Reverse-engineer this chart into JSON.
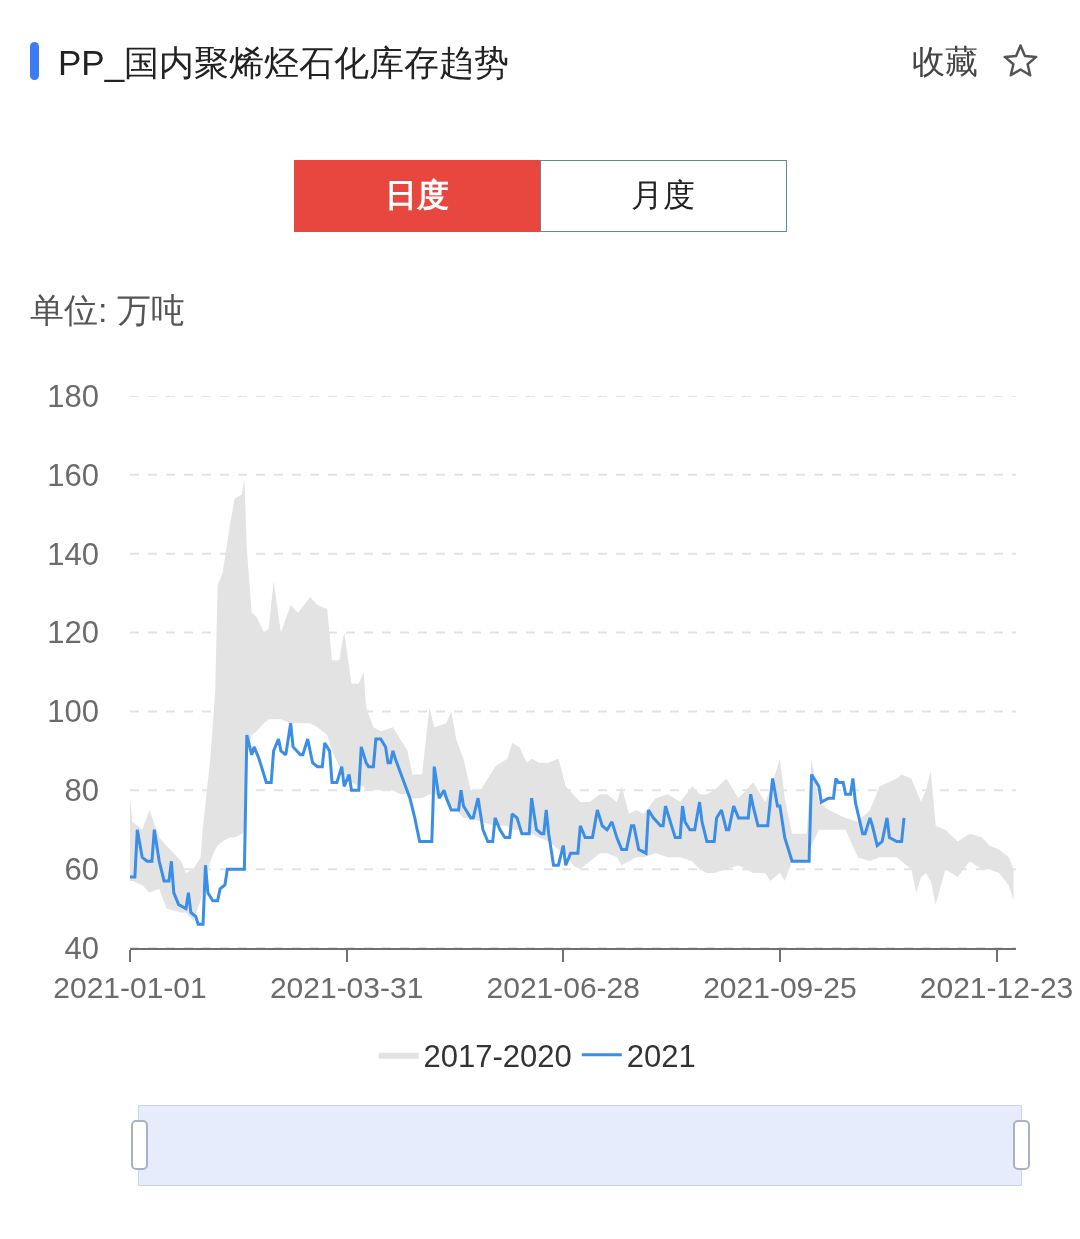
{
  "chart_data": {
    "type": "line",
    "title": "PP_国内聚烯烃石化库存趋势",
    "ylabel": "单位: 万吨",
    "annotations": [
      "收藏",
      "日度",
      "月度"
    ],
    "series": [
      {
        "name": "2017-2020",
        "type": "area",
        "color": "#e3e3e3",
        "x": [
          "2021-01-01",
          "2021-01-02",
          "2021-01-06",
          "2021-01-09",
          "2021-01-13",
          "2021-01-16",
          "2021-01-22",
          "2021-01-24",
          "2021-01-27",
          "2021-01-30",
          "2021-01-31",
          "2021-02-03",
          "2021-02-05",
          "2021-02-06",
          "2021-02-08",
          "2021-02-11",
          "2021-02-13",
          "2021-02-16",
          "2021-02-17",
          "2021-02-18",
          "2021-02-20",
          "2021-02-22",
          "2021-02-25",
          "2021-02-27",
          "2021-03-01",
          "2021-03-04",
          "2021-03-08",
          "2021-03-11",
          "2021-03-16",
          "2021-03-19",
          "2021-03-23",
          "2021-03-25",
          "2021-03-28",
          "2021-03-30",
          "2021-04-02",
          "2021-04-05",
          "2021-04-07",
          "2021-04-08",
          "2021-04-11",
          "2021-04-14",
          "2021-04-19",
          "2021-04-22",
          "2021-04-25",
          "2021-04-27",
          "2021-05-01",
          "2021-05-04",
          "2021-05-06",
          "2021-05-11",
          "2021-05-13",
          "2021-05-15",
          "2021-05-18",
          "2021-05-21",
          "2021-05-25",
          "2021-05-31",
          "2021-06-05",
          "2021-06-07",
          "2021-06-10",
          "2021-06-13",
          "2021-06-15",
          "2021-06-18",
          "2021-06-22",
          "2021-06-26",
          "2021-06-29",
          "2021-07-02",
          "2021-07-05",
          "2021-07-09",
          "2021-07-13",
          "2021-07-16",
          "2021-07-20",
          "2021-07-22",
          "2021-07-25",
          "2021-07-28",
          "2021-07-31",
          "2021-08-05",
          "2021-08-10",
          "2021-08-15",
          "2021-08-20",
          "2021-08-23",
          "2021-08-26",
          "2021-08-29",
          "2021-09-03",
          "2021-09-08",
          "2021-09-14",
          "2021-09-19",
          "2021-09-21",
          "2021-09-25",
          "2021-09-27",
          "2021-09-30",
          "2021-10-06",
          "2021-10-08",
          "2021-10-11",
          "2021-10-15",
          "2021-10-22",
          "2021-10-27",
          "2021-11-01",
          "2021-11-05",
          "2021-11-12",
          "2021-11-14",
          "2021-11-18",
          "2021-11-20",
          "2021-11-22",
          "2021-11-24",
          "2021-11-26",
          "2021-11-28",
          "2021-12-02",
          "2021-12-07",
          "2021-12-12",
          "2021-12-17",
          "2021-12-20",
          "2021-12-24",
          "2021-12-28",
          "2021-12-30"
        ],
        "values": [
          null,
          null,
          null,
          null,
          null,
          null,
          null,
          null,
          null,
          null,
          null,
          null,
          null,
          null,
          null,
          null,
          null,
          null,
          null,
          null,
          null,
          null,
          null,
          null,
          null,
          null,
          null,
          null,
          null,
          null,
          null,
          null,
          null,
          null,
          null,
          null,
          null,
          null,
          null,
          null,
          null,
          null,
          null,
          null,
          null,
          null,
          null,
          null,
          null,
          null,
          null,
          null,
          null,
          null,
          null,
          null,
          null,
          null,
          null,
          null,
          null,
          null,
          null,
          null,
          null,
          null,
          null,
          null,
          null,
          null,
          null,
          null,
          null,
          null,
          null,
          null,
          null,
          null,
          null,
          null,
          null,
          null,
          null,
          null,
          null,
          null,
          null,
          null,
          null,
          null,
          null,
          null,
          null,
          null,
          null,
          null,
          null,
          null,
          null,
          null,
          null,
          null,
          null,
          null,
          null,
          null,
          null,
          null,
          null,
          null,
          null,
          null
        ],
        "upper": [
          78,
          72,
          70,
          75,
          68,
          66,
          62,
          59,
          60,
          63,
          71,
          88,
          105,
          132,
          135,
          147,
          154,
          155,
          159,
          141,
          125,
          124,
          120,
          121,
          133,
          120,
          127,
          125,
          129,
          127,
          126,
          113,
          113,
          120,
          107,
          107,
          110,
          101,
          96,
          95,
          96,
          93,
          90,
          84,
          84,
          101,
          96,
          97,
          100,
          93,
          88,
          80,
          80,
          86,
          88,
          92,
          91,
          87,
          88,
          87,
          87,
          88,
          81,
          79,
          77,
          77,
          79,
          79,
          77,
          81,
          74,
          75,
          74,
          78,
          79,
          77,
          81,
          79,
          79,
          80,
          83,
          78,
          82,
          77,
          80,
          88,
          78,
          69,
          69,
          88,
          77,
          75,
          73,
          72,
          75,
          81,
          83,
          84,
          83,
          80,
          77,
          80,
          85,
          71,
          70,
          67,
          69,
          68,
          66,
          65,
          63,
          60
        ],
        "lower": [
          57,
          57,
          56,
          54,
          55,
          50,
          49,
          49,
          47,
          52,
          55,
          62,
          65,
          66,
          67,
          68,
          68,
          69,
          70,
          90,
          94,
          95,
          97,
          98,
          98,
          98,
          97,
          97,
          97,
          96,
          94,
          90,
          86,
          84,
          82,
          81,
          81,
          80,
          80,
          80,
          80,
          79,
          79,
          78,
          78,
          79,
          79,
          78,
          76,
          75,
          73,
          73,
          72,
          71,
          71,
          70,
          70,
          69,
          69,
          68,
          67,
          65,
          64,
          61,
          60,
          62,
          64,
          64,
          63,
          61,
          62,
          63,
          63,
          64,
          63,
          63,
          62,
          60,
          59,
          59,
          60,
          61,
          59,
          59,
          57,
          59,
          57,
          62,
          62,
          66,
          70,
          70,
          70,
          63,
          62,
          63,
          63,
          62,
          60,
          54,
          58,
          59,
          57,
          51,
          60,
          58,
          62,
          60,
          60,
          59,
          56,
          52
        ]
      },
      {
        "name": "2021",
        "color": "#3a8ee6",
        "x": [
          "2021-01-01",
          "2021-01-03",
          "2021-01-04",
          "2021-01-06",
          "2021-01-08",
          "2021-01-10",
          "2021-01-11",
          "2021-01-13",
          "2021-01-15",
          "2021-01-17",
          "2021-01-18",
          "2021-01-19",
          "2021-01-21",
          "2021-01-24",
          "2021-01-25",
          "2021-01-26",
          "2021-01-28",
          "2021-01-29",
          "2021-01-31",
          "2021-02-01",
          "2021-02-02",
          "2021-02-04",
          "2021-02-06",
          "2021-02-07",
          "2021-02-09",
          "2021-02-10",
          "2021-02-17",
          "2021-02-18",
          "2021-02-20",
          "2021-02-21",
          "2021-02-23",
          "2021-02-26",
          "2021-02-28",
          "2021-03-01",
          "2021-03-03",
          "2021-03-04",
          "2021-03-06",
          "2021-03-08",
          "2021-03-09",
          "2021-03-12",
          "2021-03-13",
          "2021-03-15",
          "2021-03-17",
          "2021-03-19",
          "2021-03-21",
          "2021-03-22",
          "2021-03-24",
          "2021-03-25",
          "2021-03-27",
          "2021-03-29",
          "2021-03-30",
          "2021-04-01",
          "2021-04-02",
          "2021-04-05",
          "2021-04-06",
          "2021-04-08",
          "2021-04-09",
          "2021-04-11",
          "2021-04-12",
          "2021-04-14",
          "2021-04-16",
          "2021-04-17",
          "2021-04-18",
          "2021-04-19",
          "2021-04-20",
          "2021-04-23",
          "2021-04-26",
          "2021-04-28",
          "2021-04-30",
          "2021-05-05",
          "2021-05-06",
          "2021-05-08",
          "2021-05-10",
          "2021-05-11",
          "2021-05-13",
          "2021-05-16",
          "2021-05-17",
          "2021-05-18",
          "2021-05-21",
          "2021-05-22",
          "2021-05-24",
          "2021-05-26",
          "2021-05-28",
          "2021-05-30",
          "2021-05-31",
          "2021-06-02",
          "2021-06-04",
          "2021-06-06",
          "2021-06-07",
          "2021-06-09",
          "2021-06-11",
          "2021-06-14",
          "2021-06-15",
          "2021-06-17",
          "2021-06-19",
          "2021-06-20",
          "2021-06-21",
          "2021-06-22",
          "2021-06-24",
          "2021-06-26",
          "2021-06-28",
          "2021-06-29",
          "2021-07-01",
          "2021-07-02",
          "2021-07-04",
          "2021-07-05",
          "2021-07-07",
          "2021-07-10",
          "2021-07-12",
          "2021-07-14",
          "2021-07-16",
          "2021-07-18",
          "2021-07-20",
          "2021-07-22",
          "2021-07-24",
          "2021-07-26",
          "2021-07-27",
          "2021-07-29",
          "2021-08-01",
          "2021-08-02",
          "2021-08-04",
          "2021-08-07",
          "2021-08-08",
          "2021-08-09",
          "2021-08-11",
          "2021-08-13",
          "2021-08-15",
          "2021-08-16",
          "2021-08-17",
          "2021-08-19",
          "2021-08-21",
          "2021-08-23",
          "2021-08-24",
          "2021-08-26",
          "2021-08-28",
          "2021-08-29",
          "2021-08-30",
          "2021-09-01",
          "2021-09-03",
          "2021-09-04",
          "2021-09-06",
          "2021-09-08",
          "2021-09-10",
          "2021-09-12",
          "2021-09-13",
          "2021-09-14",
          "2021-09-16",
          "2021-09-18",
          "2021-09-20",
          "2021-09-22",
          "2021-09-24",
          "2021-09-25",
          "2021-09-27",
          "2021-09-30",
          "2021-10-07",
          "2021-10-08",
          "2021-10-09",
          "2021-10-11",
          "2021-10-12",
          "2021-10-15",
          "2021-10-17",
          "2021-10-18",
          "2021-10-19",
          "2021-10-21",
          "2021-10-22",
          "2021-10-24",
          "2021-10-25",
          "2021-10-26",
          "2021-10-29",
          "2021-10-30",
          "2021-11-01",
          "2021-11-02",
          "2021-11-04",
          "2021-11-06",
          "2021-11-08",
          "2021-11-09",
          "2021-11-12",
          "2021-11-14",
          "2021-11-15"
        ],
        "values": [
          58,
          58,
          70,
          63,
          62,
          62,
          70,
          62,
          57,
          57,
          62,
          54,
          51,
          50,
          54,
          49,
          48,
          46,
          46,
          61,
          54,
          52,
          52,
          55,
          56,
          60,
          60,
          94,
          89,
          91,
          88,
          82,
          82,
          90,
          93,
          90,
          89,
          97,
          91,
          89,
          89,
          93,
          87,
          86,
          86,
          92,
          90,
          82,
          82,
          86,
          81,
          84,
          80,
          80,
          91,
          87,
          86,
          86,
          93,
          93,
          91,
          87,
          87,
          90,
          88,
          83,
          78,
          73,
          67,
          67,
          86,
          78,
          80,
          78,
          75,
          75,
          80,
          76,
          73,
          73,
          78,
          70,
          67,
          67,
          73,
          70,
          68,
          68,
          74,
          73,
          69,
          69,
          78,
          70,
          69,
          69,
          75,
          69,
          61,
          61,
          66,
          61,
          64,
          64,
          64,
          71,
          68,
          68,
          75,
          71,
          70,
          72,
          68,
          65,
          65,
          71,
          71,
          65,
          64,
          75,
          73,
          71,
          71,
          76,
          72,
          68,
          68,
          76,
          72,
          70,
          70,
          77,
          72,
          67,
          67,
          67,
          73,
          75,
          70,
          70,
          76,
          73,
          73,
          73,
          79,
          76,
          71,
          71,
          71,
          83,
          76,
          76,
          68,
          62,
          62,
          84,
          83,
          81,
          77,
          78,
          78,
          83,
          82,
          82,
          79,
          79,
          83,
          77,
          69,
          69,
          73,
          71,
          66,
          67,
          73,
          68,
          67,
          67,
          73
        ]
      }
    ],
    "xlim": [
      "2021-01-01",
      "2021-12-31"
    ],
    "xticks": [
      "2021-01-01",
      "2021-03-31",
      "2021-06-28",
      "2021-09-25",
      "2021-12-23"
    ],
    "ylim": [
      40,
      180
    ],
    "yticks": [
      40,
      60,
      80,
      100,
      120,
      140,
      160,
      180
    ],
    "grid": "y",
    "legend": "bottom"
  }
}
